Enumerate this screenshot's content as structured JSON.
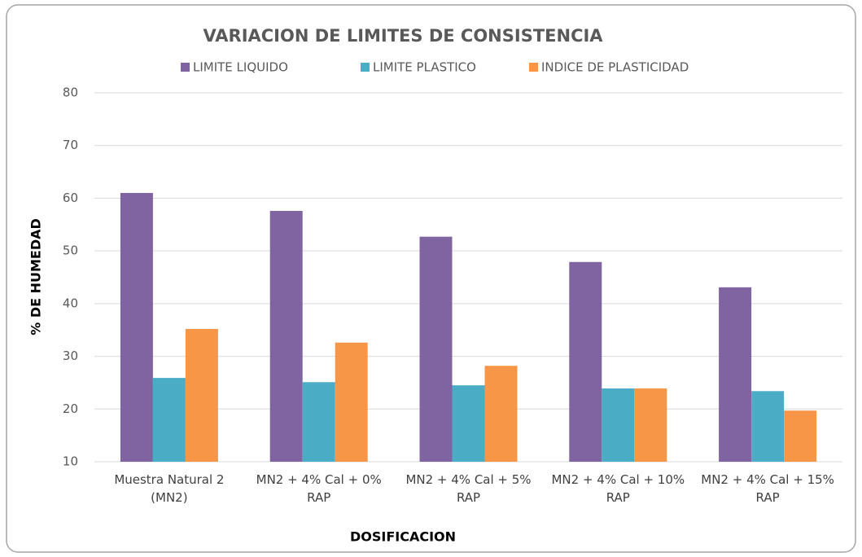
{
  "chart_data": {
    "type": "bar",
    "title": "VARIACION DE LIMITES DE CONSISTENCIA",
    "x_label": "DOSIFICACION",
    "y_label": "% DE HUMEDAD",
    "categories": [
      "Muestra Natural 2 (MN2)",
      "MN2 + 4% Cal + 0% RAP",
      "MN2 + 4% Cal + 5% RAP",
      "MN2 + 4% Cal + 10% RAP",
      "MN2 + 4% Cal + 15% RAP"
    ],
    "series": [
      {
        "name": "LIMITE LIQUIDO",
        "color": "#8064a2",
        "values": [
          61.0,
          57.6,
          52.7,
          47.9,
          43.1
        ]
      },
      {
        "name": "LIMITE PLASTICO",
        "color": "#4bacc6",
        "values": [
          25.9,
          25.1,
          24.5,
          23.9,
          23.4
        ]
      },
      {
        "name": "INDICE DE PLASTICIDAD",
        "color": "#f79646",
        "values": [
          35.2,
          32.6,
          28.2,
          23.9,
          19.7
        ]
      }
    ],
    "ylim": [
      10,
      80
    ],
    "yticks": [
      10,
      20,
      30,
      40,
      50,
      60,
      70,
      80
    ],
    "grid": true,
    "legend": "top"
  }
}
